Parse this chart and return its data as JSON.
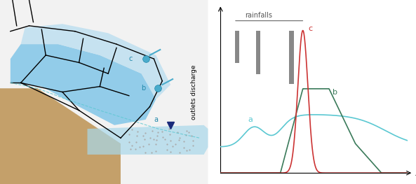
{
  "fig_width": 5.93,
  "fig_height": 2.63,
  "dpi": 100,
  "bg_color": "#ffffff",
  "rainfall_label": "rainfalls",
  "rainfall_bar_color": "#888888",
  "curve_a_color": "#5bc8d2",
  "curve_b_color": "#3a7a5a",
  "curve_c_color": "#cc3333",
  "ylabel": "outlets discharge",
  "xlabel": "t",
  "label_a": "a",
  "label_b": "b",
  "label_c": "c"
}
